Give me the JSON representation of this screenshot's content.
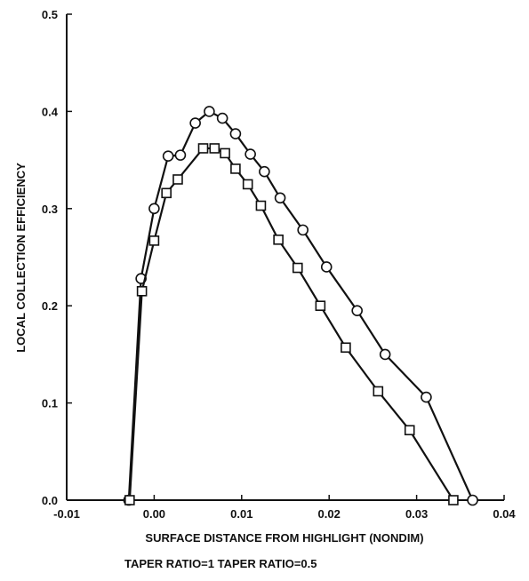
{
  "chart_data": {
    "type": "line",
    "xlabel": "SURFACE DISTANCE FROM HIGHLIGHT (NONDIM)",
    "ylabel": "LOCAL COLLECTION EFFICIENCY",
    "xlim": [
      -0.01,
      0.04
    ],
    "ylim": [
      0.0,
      0.5
    ],
    "xticks": [
      -0.01,
      0.0,
      0.01,
      0.02,
      0.03,
      0.04
    ],
    "xtick_labels": [
      "-0.01",
      "0.00",
      "0.01",
      "0.02",
      "0.03",
      "0.04"
    ],
    "yticks": [
      0.0,
      0.1,
      0.2,
      0.3,
      0.4,
      0.5
    ],
    "ytick_labels": [
      "0.0",
      "0.1",
      "0.2",
      "0.3",
      "0.4",
      "0.5"
    ],
    "grid": false,
    "legend_position": "below",
    "series": [
      {
        "name": "TAPER RATIO=1",
        "marker": "circle",
        "x": [
          -0.0029,
          -0.0015,
          0.0,
          0.0016,
          0.003,
          0.0047,
          0.0063,
          0.0078,
          0.0093,
          0.011,
          0.0126,
          0.0144,
          0.017,
          0.0197,
          0.0232,
          0.0264,
          0.0311,
          0.0364
        ],
        "y": [
          0.0,
          0.228,
          0.3,
          0.354,
          0.355,
          0.388,
          0.4,
          0.393,
          0.377,
          0.356,
          0.338,
          0.311,
          0.278,
          0.24,
          0.195,
          0.15,
          0.106,
          0.0
        ]
      },
      {
        "name": "TAPER RATIO=0.5",
        "marker": "square",
        "x": [
          -0.0028,
          -0.0014,
          0.0,
          0.0014,
          0.0027,
          0.0056,
          0.0069,
          0.0081,
          0.0093,
          0.0107,
          0.0122,
          0.0142,
          0.0164,
          0.019,
          0.0219,
          0.0256,
          0.0292,
          0.0342
        ],
        "y": [
          0.0,
          0.215,
          0.267,
          0.316,
          0.33,
          0.362,
          0.362,
          0.357,
          0.341,
          0.325,
          0.303,
          0.268,
          0.239,
          0.2,
          0.157,
          0.112,
          0.072,
          0.0
        ]
      }
    ]
  }
}
